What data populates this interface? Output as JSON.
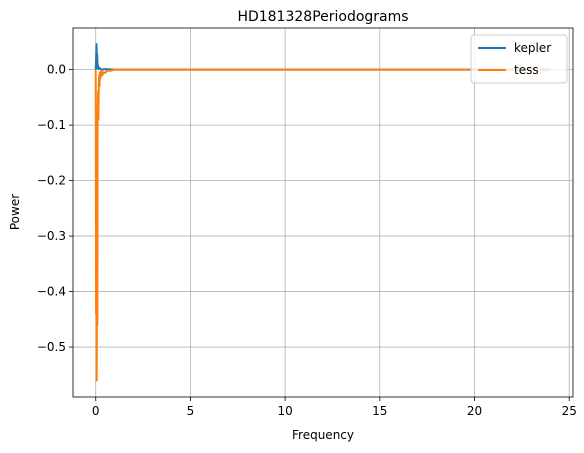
{
  "chart_data": {
    "type": "line",
    "title": "HD181328Periodograms",
    "xlabel": "Frequency",
    "ylabel": "Power",
    "xlim": [
      -1.2,
      25.2
    ],
    "ylim": [
      -0.59,
      0.075
    ],
    "x_ticks": [
      0,
      5,
      10,
      15,
      20,
      25
    ],
    "x_tick_labels": [
      "0",
      "5",
      "10",
      "15",
      "20",
      "25"
    ],
    "y_ticks": [
      0.0,
      -0.1,
      -0.2,
      -0.3,
      -0.4,
      -0.5
    ],
    "y_tick_labels": [
      "0.0",
      "−0.1",
      "−0.2",
      "−0.3",
      "−0.4",
      "−0.5"
    ],
    "grid": true,
    "legend_position": "top-right",
    "series": [
      {
        "name": "kepler",
        "color": "#1f77b4",
        "x": [
          0.0,
          0.02,
          0.04,
          0.06,
          0.08,
          0.1,
          0.12,
          0.15,
          0.2,
          0.3,
          0.5,
          1.0,
          3.0,
          10.0,
          20.0,
          24.0
        ],
        "y": [
          0.0,
          0.02,
          0.046,
          0.01,
          0.028,
          0.003,
          0.008,
          0.001,
          0.003,
          0.0,
          0.001,
          0.0,
          0.0,
          0.0,
          0.0,
          0.0
        ]
      },
      {
        "name": "tess",
        "color": "#ff7f0e",
        "x": [
          0.0,
          0.02,
          0.04,
          0.05,
          0.07,
          0.09,
          0.1,
          0.12,
          0.14,
          0.16,
          0.18,
          0.2,
          0.22,
          0.25,
          0.3,
          0.35,
          0.4,
          0.5,
          0.6,
          0.8,
          1.0,
          2.0,
          5.0,
          10.0,
          20.0,
          24.0
        ],
        "y": [
          0.0,
          -0.44,
          -0.19,
          -0.56,
          -0.3,
          -0.46,
          -0.1,
          -0.04,
          -0.09,
          -0.02,
          -0.01,
          -0.03,
          -0.005,
          -0.015,
          -0.003,
          -0.01,
          -0.005,
          -0.006,
          -0.002,
          -0.002,
          0.0,
          0.0,
          0.0,
          0.0,
          0.0,
          0.0
        ]
      }
    ]
  }
}
